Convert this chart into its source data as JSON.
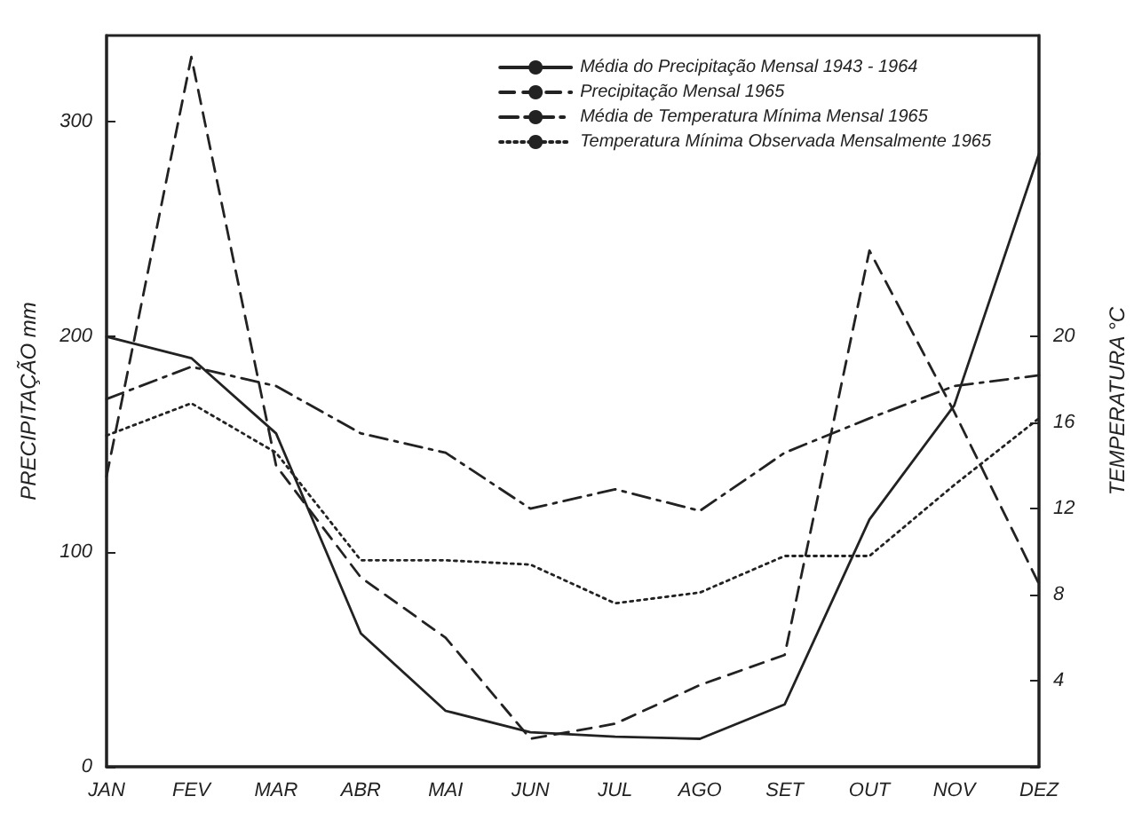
{
  "chart_data": {
    "type": "line",
    "categories": [
      "JAN",
      "FEV",
      "MAR",
      "ABR",
      "MAI",
      "JUN",
      "JUL",
      "AGO",
      "SET",
      "OUT",
      "NOV",
      "DEZ"
    ],
    "series": [
      {
        "name": "Média do Precipitação Mensal 1943 - 1964",
        "color": "#222222",
        "line_style": "solid",
        "values": [
          200,
          190,
          155,
          62,
          26,
          16,
          14,
          13,
          29,
          115,
          168,
          285
        ]
      },
      {
        "name": "Precipitação Mensal 1965",
        "color": "#222222",
        "line_style": "dashed",
        "values": [
          135,
          330,
          140,
          88,
          60,
          13,
          20,
          38,
          52,
          240,
          165,
          85
        ]
      },
      {
        "name": "Média de Temperatura Mínima Mensal 1965",
        "color": "#222222",
        "line_style": "dashdot",
        "axis": "y2",
        "values": [
          17.1,
          18.6,
          17.7,
          15.5,
          14.6,
          12,
          12.9,
          11.9,
          14.6,
          16.2,
          17.7,
          18.2
        ]
      },
      {
        "name": "Temperatura Mínima Observada Mensalmente 1965",
        "color": "#222222",
        "line_style": "dotted",
        "axis": "y2",
        "values": [
          15.4,
          16.9,
          14.6,
          9.6,
          9.6,
          9.4,
          7.6,
          8.1,
          9.8,
          9.8,
          13.1,
          16.2
        ]
      }
    ],
    "ylabel": "PRECIPITAÇÃO mm",
    "y2label": "TEMPERATURA °C",
    "ylim": [
      0,
      340
    ],
    "yticks": [
      0,
      100,
      200,
      300
    ],
    "y2lim": [
      0,
      34
    ],
    "y2ticks": [
      {
        "value": 0,
        "label": null
      },
      4,
      8,
      12,
      16,
      20
    ],
    "legend": "top right",
    "grid": false,
    "marker": "none"
  }
}
